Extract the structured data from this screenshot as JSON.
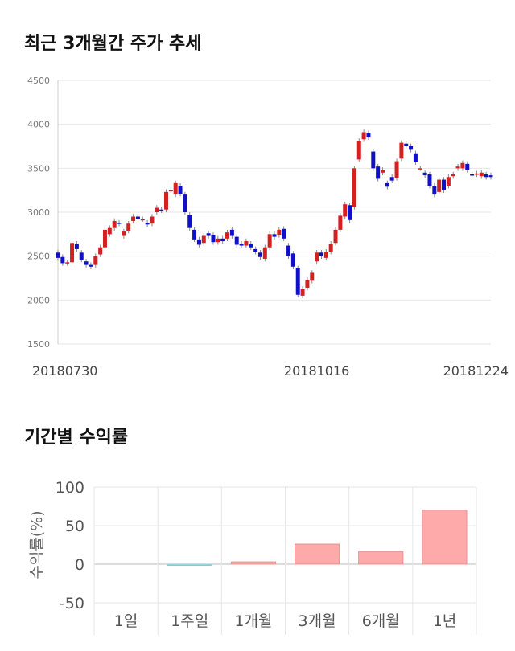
{
  "price_section": {
    "title": "최근 3개월간 주가 추세"
  },
  "returns_section": {
    "title": "기간별 수익률"
  },
  "colors": {
    "up": "#d32020",
    "down": "#1010c8",
    "bar_positive": "#ffaaaa",
    "bar_negative": "#a8dde8",
    "grid": "#e6e6e6",
    "axis_text": "#777777"
  },
  "chart_data": [
    {
      "type": "candlestick",
      "title": "최근 3개월간 주가 추세",
      "ylim": [
        1500,
        4500
      ],
      "yticks": [
        1500,
        2000,
        2500,
        3000,
        3500,
        4000,
        4500
      ],
      "xtick_labels": [
        {
          "index": 0,
          "label": "20180730"
        },
        {
          "index": 55,
          "label": "20181016"
        },
        {
          "index": 103,
          "label": "20181224"
        }
      ],
      "grid": true,
      "candles": [
        [
          2540,
          2480
        ],
        [
          2490,
          2420
        ],
        [
          2420,
          2430
        ],
        [
          2430,
          2650
        ],
        [
          2640,
          2580
        ],
        [
          2540,
          2460
        ],
        [
          2440,
          2400
        ],
        [
          2400,
          2380
        ],
        [
          2400,
          2500
        ],
        [
          2520,
          2600
        ],
        [
          2600,
          2800
        ],
        [
          2750,
          2820
        ],
        [
          2820,
          2900
        ],
        [
          2880,
          2870
        ],
        [
          2730,
          2780
        ],
        [
          2790,
          2870
        ],
        [
          2900,
          2950
        ],
        [
          2950,
          2920
        ],
        [
          2920,
          2920
        ],
        [
          2880,
          2860
        ],
        [
          2870,
          2950
        ],
        [
          3000,
          3050
        ],
        [
          3030,
          3020
        ],
        [
          3030,
          3230
        ],
        [
          3250,
          3250
        ],
        [
          3200,
          3330
        ],
        [
          3300,
          3210
        ],
        [
          3200,
          3000
        ],
        [
          2970,
          2820
        ],
        [
          2800,
          2690
        ],
        [
          2690,
          2630
        ],
        [
          2650,
          2730
        ],
        [
          2760,
          2730
        ],
        [
          2740,
          2660
        ],
        [
          2660,
          2700
        ],
        [
          2700,
          2670
        ],
        [
          2700,
          2770
        ],
        [
          2800,
          2730
        ],
        [
          2720,
          2630
        ],
        [
          2640,
          2620
        ],
        [
          2620,
          2670
        ],
        [
          2640,
          2600
        ],
        [
          2580,
          2550
        ],
        [
          2540,
          2490
        ],
        [
          2470,
          2600
        ],
        [
          2600,
          2750
        ],
        [
          2750,
          2720
        ],
        [
          2740,
          2800
        ],
        [
          2810,
          2700
        ],
        [
          2620,
          2500
        ],
        [
          2530,
          2380
        ],
        [
          2360,
          2060
        ],
        [
          2050,
          2130
        ],
        [
          2140,
          2230
        ],
        [
          2220,
          2310
        ],
        [
          2440,
          2540
        ],
        [
          2540,
          2500
        ],
        [
          2480,
          2550
        ],
        [
          2550,
          2640
        ],
        [
          2650,
          2800
        ],
        [
          2800,
          2960
        ],
        [
          2950,
          3090
        ],
        [
          3080,
          2910
        ],
        [
          3060,
          3500
        ],
        [
          3600,
          3810
        ],
        [
          3830,
          3910
        ],
        [
          3900,
          3850
        ],
        [
          3690,
          3500
        ],
        [
          3520,
          3380
        ],
        [
          3450,
          3480
        ],
        [
          3330,
          3290
        ],
        [
          3400,
          3360
        ],
        [
          3390,
          3580
        ],
        [
          3610,
          3790
        ],
        [
          3780,
          3750
        ],
        [
          3750,
          3710
        ],
        [
          3670,
          3570
        ],
        [
          3500,
          3500
        ],
        [
          3450,
          3420
        ],
        [
          3430,
          3300
        ],
        [
          3300,
          3200
        ],
        [
          3230,
          3370
        ],
        [
          3370,
          3250
        ],
        [
          3300,
          3400
        ],
        [
          3410,
          3430
        ],
        [
          3500,
          3520
        ],
        [
          3500,
          3560
        ],
        [
          3550,
          3480
        ],
        [
          3430,
          3420
        ],
        [
          3430,
          3440
        ],
        [
          3410,
          3450
        ],
        [
          3430,
          3400
        ],
        [
          3420,
          3400
        ]
      ]
    },
    {
      "type": "bar",
      "categories": [
        "1일",
        "1주일",
        "1개월",
        "3개월",
        "6개월",
        "1년"
      ],
      "values": [
        0,
        -1,
        3,
        26,
        16,
        70
      ],
      "ylabel": "수익률(%)",
      "ylim": [
        -50,
        100
      ],
      "yticks": [
        -50,
        0,
        50,
        100
      ],
      "grid": true
    }
  ]
}
